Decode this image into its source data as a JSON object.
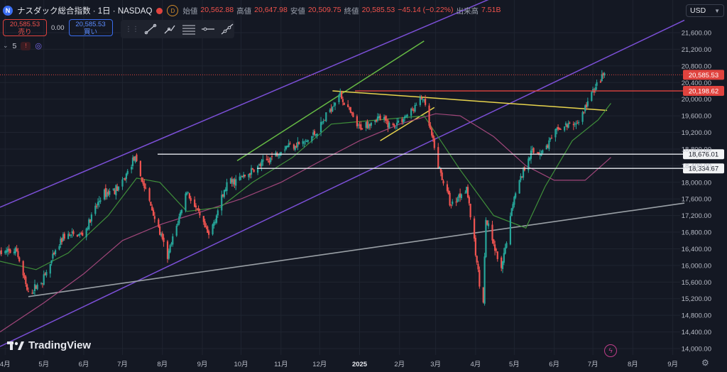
{
  "header": {
    "symbol_icon": "nasdaq-icon",
    "title": "ナスダック総合指数 · 1日 · NASDAQ",
    "badge_d": "D",
    "ohlc": [
      {
        "key": "始値",
        "value": "20,562.88"
      },
      {
        "key": "高値",
        "value": "20,647.98"
      },
      {
        "key": "安値",
        "value": "20,509.75"
      },
      {
        "key": "終値",
        "value": "20,585.53"
      },
      {
        "key": "",
        "value": "−45.14 (−0.22%)"
      },
      {
        "key": "出来高",
        "value": "7.51B"
      }
    ]
  },
  "trade": {
    "sell_price": "20,585.53",
    "sell_label": "売り",
    "spread": "0.00",
    "buy_price": "20,585.53",
    "buy_label": "買い"
  },
  "indicator_count": "5",
  "currency": "USD",
  "brand": "TradingView",
  "colors": {
    "background": "#141823",
    "up": "#26a69a",
    "down": "#ef5350",
    "purple": "#7b4fd6",
    "green_line": "#66bb44",
    "yellow_line": "#e8d44d",
    "ma_short": "#3f8f3a",
    "ma_long": "#a0467a",
    "grey_line": "#9aa0a6",
    "red_level": "#e0433e"
  },
  "chart_data": {
    "type": "candlestick",
    "x_ticks": [
      "4月",
      "5月",
      "6月",
      "7月",
      "8月",
      "9月",
      "10月",
      "11月",
      "12月",
      "2025",
      "2月",
      "3月",
      "4月",
      "5月",
      "6月",
      "7月",
      "8月",
      "9月"
    ],
    "x_tick_dates": [
      "2024-04-01",
      "2024-05-01",
      "2024-06-01",
      "2024-07-01",
      "2024-08-01",
      "2024-09-01",
      "2024-10-01",
      "2024-11-01",
      "2024-12-01",
      "2025-01-01",
      "2025-02-01",
      "2025-03-01",
      "2025-04-01",
      "2025-05-01",
      "2025-06-01",
      "2025-07-01",
      "2025-08-01",
      "2025-09-01"
    ],
    "y_ticks": [
      14000,
      14400,
      14800,
      15200,
      15600,
      16000,
      16400,
      16800,
      17200,
      17600,
      18000,
      18400,
      18800,
      19200,
      19600,
      20000,
      20400,
      20800,
      21200,
      21600
    ],
    "ylim": [
      13850,
      21900
    ],
    "price_path": [
      {
        "date": "2024-03-28",
        "close": 16300
      },
      {
        "date": "2024-04-10",
        "close": 16350
      },
      {
        "date": "2024-04-19",
        "close": 15280
      },
      {
        "date": "2024-05-01",
        "close": 15700
      },
      {
        "date": "2024-05-16",
        "close": 16700
      },
      {
        "date": "2024-06-01",
        "close": 16750
      },
      {
        "date": "2024-06-15",
        "close": 17700
      },
      {
        "date": "2024-06-30",
        "close": 17900
      },
      {
        "date": "2024-07-10",
        "close": 18600
      },
      {
        "date": "2024-07-24",
        "close": 17350
      },
      {
        "date": "2024-08-05",
        "close": 16200
      },
      {
        "date": "2024-08-20",
        "close": 17800
      },
      {
        "date": "2024-09-06",
        "close": 16700
      },
      {
        "date": "2024-09-20",
        "close": 17950
      },
      {
        "date": "2024-10-04",
        "close": 18150
      },
      {
        "date": "2024-10-20",
        "close": 18500
      },
      {
        "date": "2024-11-06",
        "close": 18900
      },
      {
        "date": "2024-11-20",
        "close": 18950
      },
      {
        "date": "2024-12-01",
        "close": 19300
      },
      {
        "date": "2024-12-16",
        "close": 20150
      },
      {
        "date": "2024-12-31",
        "close": 19300
      },
      {
        "date": "2025-01-15",
        "close": 19550
      },
      {
        "date": "2025-01-27",
        "close": 19350
      },
      {
        "date": "2025-02-10",
        "close": 19700
      },
      {
        "date": "2025-02-19",
        "close": 20050
      },
      {
        "date": "2025-03-03",
        "close": 18400
      },
      {
        "date": "2025-03-13",
        "close": 17450
      },
      {
        "date": "2025-03-25",
        "close": 17900
      },
      {
        "date": "2025-04-04",
        "close": 15600
      },
      {
        "date": "2025-04-07",
        "close": 15200
      },
      {
        "date": "2025-04-09",
        "close": 17100
      },
      {
        "date": "2025-04-21",
        "close": 15850
      },
      {
        "date": "2025-05-01",
        "close": 17700
      },
      {
        "date": "2025-05-13",
        "close": 18700
      },
      {
        "date": "2025-05-23",
        "close": 18750
      },
      {
        "date": "2025-06-05",
        "close": 19300
      },
      {
        "date": "2025-06-20",
        "close": 19450
      },
      {
        "date": "2025-07-01",
        "close": 20200
      },
      {
        "date": "2025-07-10",
        "close": 20585.53
      }
    ],
    "ma_short_path": [
      {
        "date": "2024-03-28",
        "value": 16100
      },
      {
        "date": "2024-04-25",
        "value": 15900
      },
      {
        "date": "2024-05-20",
        "value": 16300
      },
      {
        "date": "2024-06-20",
        "value": 17200
      },
      {
        "date": "2024-07-12",
        "value": 18100
      },
      {
        "date": "2024-07-30",
        "value": 18000
      },
      {
        "date": "2024-08-20",
        "value": 17300
      },
      {
        "date": "2024-09-15",
        "value": 17400
      },
      {
        "date": "2024-10-10",
        "value": 18000
      },
      {
        "date": "2024-11-10",
        "value": 18600
      },
      {
        "date": "2024-12-10",
        "value": 19400
      },
      {
        "date": "2025-01-15",
        "value": 19500
      },
      {
        "date": "2025-02-20",
        "value": 19600
      },
      {
        "date": "2025-03-20",
        "value": 18300
      },
      {
        "date": "2025-04-15",
        "value": 17200
      },
      {
        "date": "2025-05-10",
        "value": 16900
      },
      {
        "date": "2025-05-25",
        "value": 17900
      },
      {
        "date": "2025-06-15",
        "value": 19000
      },
      {
        "date": "2025-07-05",
        "value": 19500
      },
      {
        "date": "2025-07-15",
        "value": 19900
      }
    ],
    "ma_long_path": [
      {
        "date": "2024-03-28",
        "value": 14400
      },
      {
        "date": "2024-05-01",
        "value": 15100
      },
      {
        "date": "2024-06-01",
        "value": 15800
      },
      {
        "date": "2024-07-01",
        "value": 16600
      },
      {
        "date": "2024-08-01",
        "value": 17000
      },
      {
        "date": "2024-09-01",
        "value": 17300
      },
      {
        "date": "2024-10-01",
        "value": 17600
      },
      {
        "date": "2024-11-01",
        "value": 18000
      },
      {
        "date": "2024-12-01",
        "value": 18500
      },
      {
        "date": "2025-01-01",
        "value": 19000
      },
      {
        "date": "2025-02-01",
        "value": 19400
      },
      {
        "date": "2025-03-01",
        "value": 19650
      },
      {
        "date": "2025-03-20",
        "value": 19600
      },
      {
        "date": "2025-04-15",
        "value": 19100
      },
      {
        "date": "2025-05-10",
        "value": 18400
      },
      {
        "date": "2025-06-01",
        "value": 18050
      },
      {
        "date": "2025-06-25",
        "value": 18050
      },
      {
        "date": "2025-07-15",
        "value": 18600
      }
    ],
    "trendlines": [
      {
        "name": "purple-upper-channel",
        "color": "#7b4fd6",
        "points": [
          {
            "date": "2024-03-28",
            "value": 17400
          },
          {
            "date": "2025-09-10",
            "value": 24400
          }
        ]
      },
      {
        "name": "purple-lower-channel",
        "color": "#7b4fd6",
        "points": [
          {
            "date": "2024-03-28",
            "value": 14050
          },
          {
            "date": "2025-09-10",
            "value": 21900
          }
        ]
      },
      {
        "name": "green-trendline",
        "color": "#66bb44",
        "points": [
          {
            "date": "2024-09-28",
            "value": 18520
          },
          {
            "date": "2025-02-20",
            "value": 21400
          }
        ]
      },
      {
        "name": "yellow-resistance",
        "color": "#e8d44d",
        "points": [
          {
            "date": "2024-12-11",
            "value": 20200
          },
          {
            "date": "2025-07-12",
            "value": 19730
          }
        ]
      },
      {
        "name": "yellow-short",
        "color": "#e8d44d",
        "points": [
          {
            "date": "2025-01-17",
            "value": 19000
          },
          {
            "date": "2025-02-28",
            "value": 19800
          }
        ]
      },
      {
        "name": "grey-support",
        "color": "#9aa0a6",
        "points": [
          {
            "date": "2024-04-19",
            "value": 15250
          },
          {
            "date": "2025-09-10",
            "value": 17500
          }
        ]
      }
    ],
    "horizontal_levels": [
      {
        "value": 20585.53,
        "label": "20,585.53",
        "style": "dotted",
        "color": "#e0433e"
      },
      {
        "value": 20198.62,
        "label": "20,198.62",
        "style": "solid",
        "color": "#e0433e"
      },
      {
        "value": 18676.01,
        "label": "18,676.01",
        "style": "solid",
        "color": "#e6e8ee"
      },
      {
        "value": 18334.67,
        "label": "18,334.67",
        "style": "solid",
        "color": "#e6e8ee"
      }
    ],
    "grid": true
  }
}
